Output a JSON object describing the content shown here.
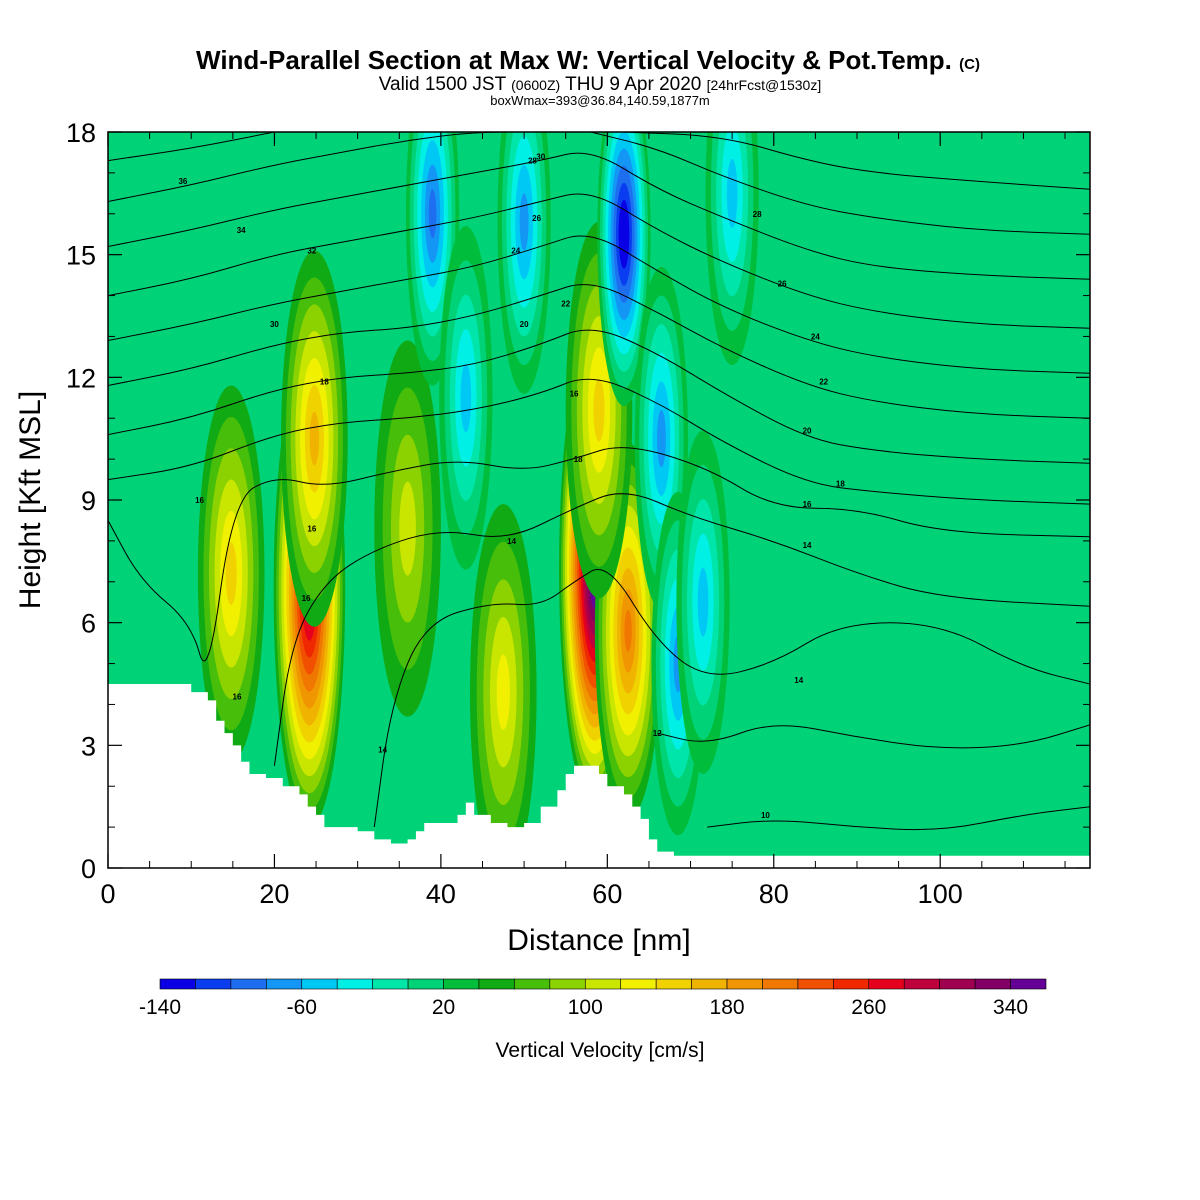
{
  "chart_data": {
    "type": "heatmap",
    "title": "Wind-Parallel Section at Max W: Vertical Velocity & Pot.Temp.",
    "title_suffix": "(C)",
    "subtitle_parts": [
      "Valid 1500 JST ",
      "(0600Z)",
      " THU 9 Apr 2020 ",
      "[24hrFcst@1530z]"
    ],
    "subtitle2": "boxWmax=393@36.84,140.59,1877m",
    "xlabel": "Distance [nm]",
    "ylabel": "Height [Kft MSL]",
    "xlim": [
      0,
      118
    ],
    "ylim": [
      0,
      18
    ],
    "x_ticks": [
      0,
      20,
      40,
      60,
      80,
      100
    ],
    "y_ticks": [
      0,
      3,
      6,
      9,
      12,
      15,
      18
    ],
    "colorbar": {
      "title": "Vertical Velocity [cm/s]",
      "min": -140,
      "step": 20,
      "colors": [
        "#0a00e6",
        "#0a3cf0",
        "#1e6ef0",
        "#1496f5",
        "#00c8f5",
        "#00f0e6",
        "#00e6aa",
        "#00d278",
        "#00be3c",
        "#10aa14",
        "#46be0a",
        "#8cd200",
        "#c8e600",
        "#f0f000",
        "#f0d200",
        "#f0b400",
        "#f09600",
        "#f07800",
        "#f05000",
        "#f02800",
        "#e6001e",
        "#be003c",
        "#a00050",
        "#820064",
        "#640096"
      ],
      "tick_values": [
        -140,
        -60,
        20,
        100,
        180,
        260,
        340
      ]
    },
    "terrain": [
      [
        0,
        4.5
      ],
      [
        4,
        4.5
      ],
      [
        8,
        4.5
      ],
      [
        10,
        4.3
      ],
      [
        12,
        4.1
      ],
      [
        13,
        3.6
      ],
      [
        14,
        3.3
      ],
      [
        15,
        3.0
      ],
      [
        16,
        2.6
      ],
      [
        17,
        2.3
      ],
      [
        19,
        2.2
      ],
      [
        21,
        2.0
      ],
      [
        23,
        1.8
      ],
      [
        24,
        1.5
      ],
      [
        25,
        1.3
      ],
      [
        26,
        1.0
      ],
      [
        28,
        1.0
      ],
      [
        30,
        0.9
      ],
      [
        32,
        0.7
      ],
      [
        34,
        0.6
      ],
      [
        36,
        0.7
      ],
      [
        37,
        0.9
      ],
      [
        38,
        1.1
      ],
      [
        40,
        1.1
      ],
      [
        42,
        1.3
      ],
      [
        43,
        1.6
      ],
      [
        44,
        1.3
      ],
      [
        46,
        1.1
      ],
      [
        48,
        1.0
      ],
      [
        50,
        1.1
      ],
      [
        52,
        1.5
      ],
      [
        54,
        1.9
      ],
      [
        55,
        2.3
      ],
      [
        56,
        2.5
      ],
      [
        58,
        2.5
      ],
      [
        59,
        2.3
      ],
      [
        60,
        2.0
      ],
      [
        62,
        1.8
      ],
      [
        63,
        1.5
      ],
      [
        64,
        1.2
      ],
      [
        65,
        0.7
      ],
      [
        66,
        0.4
      ],
      [
        68,
        0.3
      ],
      [
        118,
        0.3
      ]
    ],
    "updrafts": [
      {
        "x": 14.8,
        "y": 7.2,
        "peak": 150
      },
      {
        "x": 24.2,
        "y": 6.8,
        "peak": 300
      },
      {
        "x": 24.8,
        "y": 10.5,
        "peak": 170
      },
      {
        "x": 36.0,
        "y": 8.3,
        "peak": 110
      },
      {
        "x": 47.5,
        "y": 4.3,
        "peak": 130
      },
      {
        "x": 58.5,
        "y": 7.3,
        "peak": 380
      },
      {
        "x": 62.5,
        "y": 5.8,
        "peak": 210
      },
      {
        "x": 59.0,
        "y": 11.2,
        "peak": 150
      }
    ],
    "downdrafts": [
      {
        "x": 39.0,
        "y": 16.0,
        "peak": -90
      },
      {
        "x": 43.0,
        "y": 11.5,
        "peak": -40
      },
      {
        "x": 50.0,
        "y": 15.8,
        "peak": -60
      },
      {
        "x": 62.0,
        "y": 15.5,
        "peak": -140
      },
      {
        "x": 66.5,
        "y": 10.5,
        "peak": -70
      },
      {
        "x": 68.5,
        "y": 5.0,
        "peak": -60
      },
      {
        "x": 71.5,
        "y": 6.5,
        "peak": -50
      },
      {
        "x": 75.0,
        "y": 16.5,
        "peak": -40
      }
    ],
    "theta_contours": [
      {
        "label": "10",
        "pts": [
          [
            72,
            1.0
          ],
          [
            80,
            1.2
          ],
          [
            90,
            1.0
          ],
          [
            100,
            0.9
          ],
          [
            110,
            1.3
          ],
          [
            118,
            1.5
          ]
        ],
        "label_at": [
          79,
          1.3
        ]
      },
      {
        "label": "12",
        "pts": [
          [
            66,
            3.3
          ],
          [
            72,
            3.0
          ],
          [
            80,
            3.6
          ],
          [
            90,
            3.2
          ],
          [
            100,
            2.9
          ],
          [
            110,
            3.0
          ],
          [
            118,
            3.5
          ]
        ],
        "label_at": [
          66,
          3.3
        ]
      },
      {
        "label": "14",
        "pts": [
          [
            32,
            1.0
          ],
          [
            34,
            4.0
          ],
          [
            38,
            6.0
          ],
          [
            46,
            6.5
          ],
          [
            52,
            6.4
          ],
          [
            56,
            7.0
          ],
          [
            60,
            7.5
          ],
          [
            66,
            5.5
          ],
          [
            72,
            4.6
          ],
          [
            80,
            5.0
          ],
          [
            88,
            6.0
          ],
          [
            100,
            6.0
          ],
          [
            110,
            4.9
          ],
          [
            118,
            4.5
          ]
        ],
        "label_at": [
          83,
          4.6
        ]
      },
      {
        "label": "14",
        "pts": [
          [
            20,
            2.5
          ],
          [
            22,
            5.5
          ],
          [
            26,
            7.0
          ],
          [
            32,
            7.8
          ],
          [
            40,
            8.3
          ],
          [
            48,
            8.0
          ],
          [
            56,
            8.8
          ],
          [
            62,
            9.3
          ],
          [
            70,
            8.6
          ],
          [
            80,
            8.0
          ],
          [
            90,
            7.2
          ],
          [
            100,
            6.6
          ],
          [
            118,
            6.4
          ]
        ],
        "label_at": [
          84,
          7.9
        ]
      },
      {
        "label": "16",
        "pts": [
          [
            0,
            8.5
          ],
          [
            4,
            7.0
          ],
          [
            10,
            6.0
          ],
          [
            12,
            4.5
          ],
          [
            15,
            9.0
          ],
          [
            20,
            9.6
          ],
          [
            26,
            9.3
          ],
          [
            34,
            9.7
          ],
          [
            42,
            10.0
          ],
          [
            50,
            9.7
          ],
          [
            56,
            10.0
          ],
          [
            62,
            10.4
          ],
          [
            72,
            9.8
          ],
          [
            80,
            8.8
          ],
          [
            90,
            8.8
          ],
          [
            100,
            8.2
          ],
          [
            118,
            8.1
          ]
        ],
        "label_at": [
          84,
          8.9
        ]
      },
      {
        "label": "18",
        "pts": [
          [
            0,
            9.5
          ],
          [
            10,
            9.8
          ],
          [
            20,
            10.6
          ],
          [
            28,
            10.9
          ],
          [
            36,
            11.0
          ],
          [
            44,
            11.2
          ],
          [
            52,
            11.6
          ],
          [
            58,
            12.1
          ],
          [
            66,
            11.4
          ],
          [
            74,
            10.4
          ],
          [
            84,
            9.4
          ],
          [
            92,
            9.2
          ],
          [
            104,
            9.0
          ],
          [
            118,
            8.9
          ]
        ],
        "label_at": [
          88,
          9.4
        ]
      },
      {
        "label": "20",
        "pts": [
          [
            0,
            10.6
          ],
          [
            10,
            11.0
          ],
          [
            20,
            11.7
          ],
          [
            28,
            12.0
          ],
          [
            36,
            12.1
          ],
          [
            44,
            12.3
          ],
          [
            52,
            12.8
          ],
          [
            58,
            13.3
          ],
          [
            66,
            12.6
          ],
          [
            74,
            11.6
          ],
          [
            84,
            10.5
          ],
          [
            92,
            10.2
          ],
          [
            104,
            10.0
          ],
          [
            118,
            9.9
          ]
        ],
        "label_at": [
          84,
          10.7
        ]
      },
      {
        "label": "22",
        "pts": [
          [
            0,
            11.8
          ],
          [
            10,
            12.2
          ],
          [
            20,
            12.8
          ],
          [
            28,
            13.1
          ],
          [
            36,
            13.2
          ],
          [
            44,
            13.5
          ],
          [
            52,
            14.0
          ],
          [
            58,
            14.4
          ],
          [
            66,
            13.6
          ],
          [
            74,
            12.7
          ],
          [
            84,
            11.8
          ],
          [
            92,
            11.4
          ],
          [
            104,
            11.1
          ],
          [
            118,
            11.0
          ]
        ],
        "label_at": [
          86,
          11.9
        ]
      },
      {
        "label": "24",
        "pts": [
          [
            0,
            12.9
          ],
          [
            10,
            13.3
          ],
          [
            20,
            13.8
          ],
          [
            28,
            14.1
          ],
          [
            36,
            14.4
          ],
          [
            44,
            14.7
          ],
          [
            52,
            15.2
          ],
          [
            58,
            15.6
          ],
          [
            66,
            14.6
          ],
          [
            74,
            13.7
          ],
          [
            84,
            12.9
          ],
          [
            92,
            12.5
          ],
          [
            104,
            12.2
          ],
          [
            118,
            12.1
          ]
        ],
        "label_at": [
          85,
          13.0
        ]
      },
      {
        "label": "26",
        "pts": [
          [
            0,
            14.0
          ],
          [
            10,
            14.4
          ],
          [
            20,
            15.0
          ],
          [
            28,
            15.3
          ],
          [
            36,
            15.6
          ],
          [
            44,
            15.9
          ],
          [
            52,
            16.3
          ],
          [
            58,
            16.6
          ],
          [
            66,
            15.6
          ],
          [
            74,
            14.8
          ],
          [
            84,
            14.0
          ],
          [
            92,
            13.6
          ],
          [
            104,
            13.3
          ],
          [
            118,
            13.2
          ]
        ],
        "label_at": [
          81,
          14.3
        ]
      },
      {
        "label": "28",
        "pts": [
          [
            0,
            15.2
          ],
          [
            10,
            15.6
          ],
          [
            20,
            16.1
          ],
          [
            28,
            16.4
          ],
          [
            36,
            16.7
          ],
          [
            44,
            17.0
          ],
          [
            52,
            17.3
          ],
          [
            58,
            17.6
          ],
          [
            66,
            16.6
          ],
          [
            74,
            15.9
          ],
          [
            84,
            15.1
          ],
          [
            92,
            14.7
          ],
          [
            104,
            14.5
          ],
          [
            118,
            14.4
          ]
        ],
        "label_at": [
          78,
          16.0
        ]
      },
      {
        "label": "30",
        "pts": [
          [
            0,
            16.3
          ],
          [
            10,
            16.7
          ],
          [
            20,
            17.2
          ],
          [
            28,
            17.5
          ],
          [
            36,
            17.8
          ],
          [
            44,
            18.0
          ],
          [
            52,
            18.0
          ]
        ],
        "label_at": [
          52,
          17.4
        ]
      },
      {
        "label": "",
        "pts": [
          [
            58,
            18.0
          ],
          [
            66,
            17.6
          ],
          [
            74,
            16.9
          ],
          [
            84,
            16.2
          ],
          [
            92,
            15.9
          ],
          [
            104,
            15.6
          ],
          [
            118,
            15.5
          ]
        ],
        "label_at": null
      },
      {
        "label": "",
        "pts": [
          [
            62,
            18.0
          ],
          [
            74,
            17.9
          ],
          [
            84,
            17.3
          ],
          [
            92,
            17.0
          ],
          [
            104,
            16.8
          ],
          [
            118,
            16.6
          ]
        ],
        "label_at": null
      },
      {
        "label": "36",
        "pts": [
          [
            0,
            17.3
          ],
          [
            10,
            17.6
          ],
          [
            20,
            18.0
          ]
        ],
        "label_at": [
          9,
          16.8
        ]
      }
    ],
    "extra_contour_labels": [
      {
        "label": "34",
        "at": [
          16,
          15.6
        ]
      },
      {
        "label": "32",
        "at": [
          24.5,
          15.1
        ]
      },
      {
        "label": "30",
        "at": [
          20,
          13.3
        ]
      },
      {
        "label": "18",
        "at": [
          26,
          11.9
        ]
      },
      {
        "label": "16",
        "at": [
          24.5,
          8.3
        ]
      },
      {
        "label": "16",
        "at": [
          23.8,
          6.6
        ]
      },
      {
        "label": "16",
        "at": [
          11,
          9.0
        ]
      },
      {
        "label": "16",
        "at": [
          15.5,
          4.2
        ]
      },
      {
        "label": "14",
        "at": [
          33,
          2.9
        ]
      },
      {
        "label": "14",
        "at": [
          48.5,
          8.0
        ]
      },
      {
        "label": "16",
        "at": [
          56,
          11.6
        ]
      },
      {
        "label": "18",
        "at": [
          56.5,
          10.0
        ]
      },
      {
        "label": "20",
        "at": [
          50,
          13.3
        ]
      },
      {
        "label": "22",
        "at": [
          55,
          13.8
        ]
      },
      {
        "label": "24",
        "at": [
          49,
          15.1
        ]
      },
      {
        "label": "26",
        "at": [
          51.5,
          15.9
        ]
      },
      {
        "label": "28",
        "at": [
          51,
          17.3
        ]
      }
    ]
  }
}
